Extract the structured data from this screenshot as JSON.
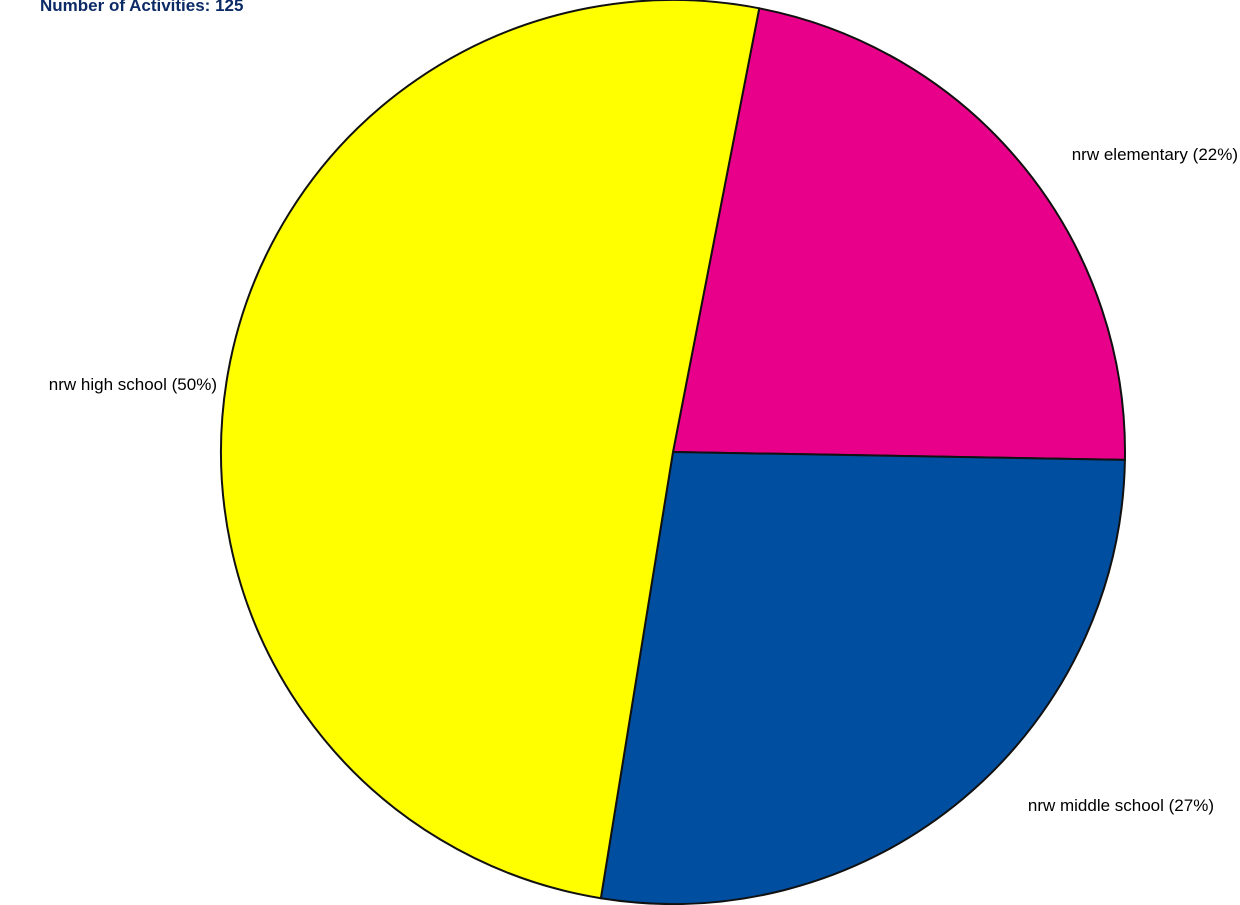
{
  "header": {
    "count_label": "Number of Activities:",
    "count_value": "125"
  },
  "chart_data": {
    "type": "pie",
    "title": "",
    "start_angle_deg": -79,
    "direction": "clockwise",
    "slices": [
      {
        "label": "nrw elementary (22%)",
        "name": "nrw elementary",
        "value": 22,
        "color": "#e8008a"
      },
      {
        "label": "nrw middle school (27%)",
        "name": "nrw middle school",
        "value": 27,
        "color": "#004ea0"
      },
      {
        "label": "nrw high school (50%)",
        "name": "nrw high school",
        "value": 50,
        "color": "#ffff00"
      }
    ]
  }
}
